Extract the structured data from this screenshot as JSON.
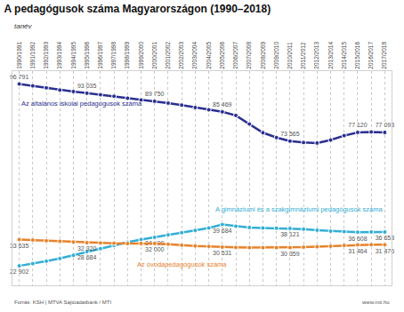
{
  "chart_data": {
    "type": "line",
    "title": "A pedagógusok száma Magyarországon (1990–2018)",
    "xlabel": "tanév",
    "source": "Forrás: KSH | MTVA Sajtóadatbank / MTI",
    "footer": "www.mti.hu",
    "categories": [
      "1990/1991",
      "1991/1992",
      "1992/1993",
      "1993/1994",
      "1994/1995",
      "1995/1996",
      "1996/1997",
      "1997/1998",
      "1998/1999",
      "1999/2000",
      "2000/2001",
      "2001/2002",
      "2002/2003",
      "2003/2004",
      "2004/2005",
      "2005/2006",
      "2006/2007",
      "2007/2008",
      "2008/2009",
      "2009/2010",
      "2010/2011",
      "2011/2012",
      "2012/2013",
      "2013/2014",
      "2014/2015",
      "2015/2016",
      "2016/2017",
      "2017/2018"
    ],
    "ylim": [
      15000,
      102000
    ],
    "grid": true,
    "tick_labels": "x",
    "data_labels": true,
    "marker": "circle",
    "series": [
      {
        "name": "Az általános iskolai pedagógusok száma",
        "color": "#2b2f8f",
        "values": [
          96791,
          96000,
          95200,
          94300,
          93700,
          93035,
          92400,
          91800,
          91000,
          90300,
          89750,
          89000,
          88200,
          87200,
          86300,
          85469,
          84000,
          80500,
          77000,
          75000,
          73565,
          73000,
          72800,
          74000,
          75800,
          77120,
          77300,
          77093
        ],
        "value_labels": [
          "96 791",
          null,
          null,
          null,
          null,
          "93 035",
          null,
          null,
          null,
          null,
          "89 750",
          null,
          null,
          null,
          null,
          "85 469",
          null,
          null,
          null,
          null,
          "73 565",
          null,
          null,
          null,
          null,
          "77 120",
          null,
          "77 093"
        ]
      },
      {
        "name": "A gimnáziumi és a szakgimnáziumi pedagógusok száma",
        "color": "#33aed6",
        "values": [
          22902,
          23800,
          24800,
          25900,
          27200,
          28684,
          29900,
          31200,
          32500,
          33600,
          34500,
          35500,
          36400,
          37300,
          38300,
          39684,
          39000,
          38500,
          38300,
          38200,
          38121,
          37800,
          37400,
          37000,
          36800,
          36608,
          36700,
          36653
        ],
        "value_labels": [
          "22 902",
          null,
          null,
          null,
          null,
          "28 684",
          null,
          null,
          null,
          null,
          "34 500",
          null,
          null,
          null,
          null,
          "39 684",
          null,
          null,
          null,
          null,
          "38 121",
          null,
          null,
          null,
          null,
          "36 608",
          null,
          "36 653"
        ]
      },
      {
        "name": "Az óvodapedagógusok száma",
        "color": "#e8822a",
        "values": [
          33635,
          33400,
          33100,
          32900,
          32600,
          32320,
          32200,
          32100,
          32000,
          32000,
          32000,
          31700,
          31300,
          31000,
          30800,
          30531,
          30400,
          30300,
          30300,
          30300,
          30359,
          30500,
          30700,
          30900,
          31200,
          31464,
          31500,
          31476
        ],
        "value_labels": [
          "33 635",
          null,
          null,
          null,
          null,
          "32 320",
          null,
          null,
          null,
          null,
          "32 000",
          null,
          null,
          null,
          null,
          "30 531",
          null,
          null,
          null,
          null,
          "30 359",
          null,
          null,
          null,
          null,
          "31 464",
          null,
          "31 476"
        ]
      }
    ]
  }
}
